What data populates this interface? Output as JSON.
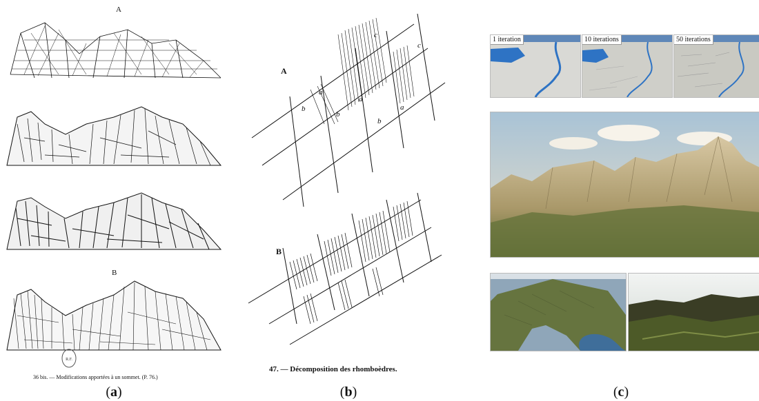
{
  "panel_a": {
    "label": "(a)",
    "letter_top": "A",
    "letter_bottom": "B",
    "plate_caption": "36 bis. — Modifications apportées à un sommet. (P. 76.)",
    "stamp_text": "R.F."
  },
  "panel_b": {
    "label": "(b)",
    "letter_top": "A",
    "letter_bottom": "B",
    "plate_caption": "47. — Décomposition des rhomboèdres.",
    "sub_letters": [
      "a",
      "a",
      "a",
      "b",
      "b",
      "b",
      "c",
      "c"
    ]
  },
  "panel_c": {
    "label": "(c)",
    "iterations": [
      {
        "label": "1 iteration"
      },
      {
        "label": "10 iterations"
      },
      {
        "label": "50 iterations"
      }
    ]
  },
  "colors": {
    "ink": "#111111",
    "sky": "#bcd3e3",
    "terrain_tan": "#c8b692",
    "terrain_green": "#56602f",
    "water": "#4b7fb0",
    "river_blue": "#2e73c4"
  }
}
